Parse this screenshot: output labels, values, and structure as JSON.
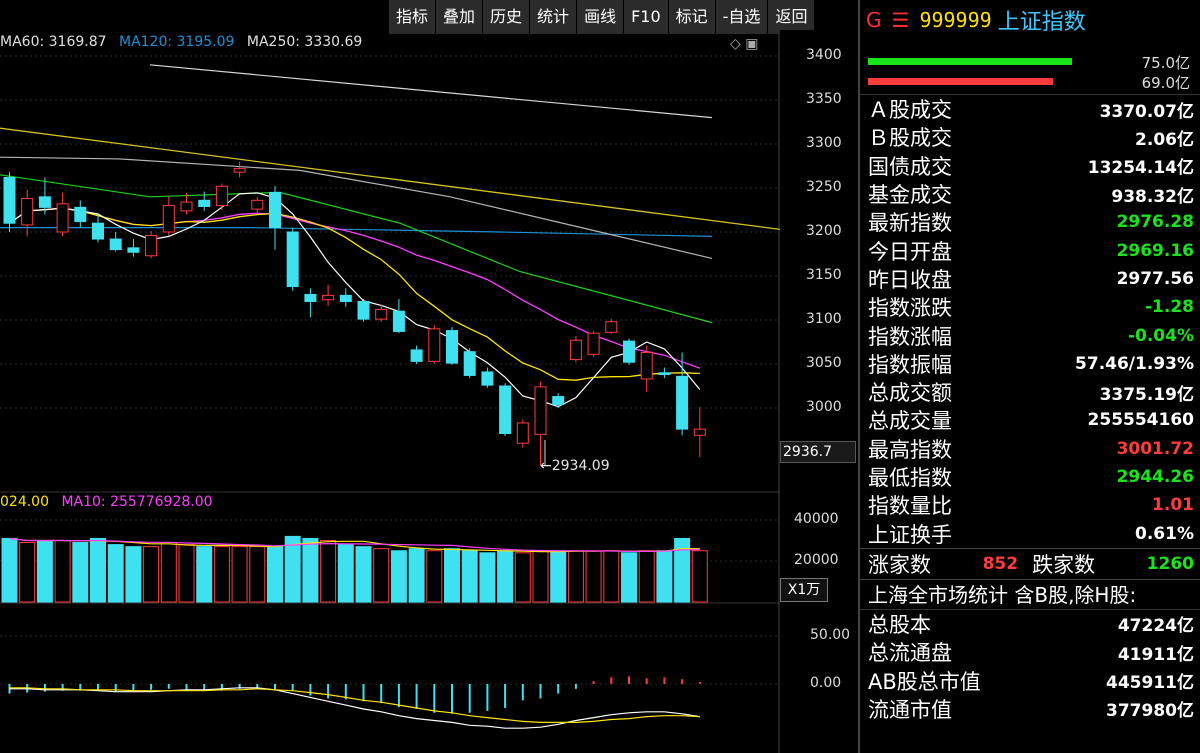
{
  "toolbar": {
    "buttons": [
      "指标",
      "叠加",
      "历史",
      "统计",
      "画线",
      "F10",
      "标记",
      "-自选",
      "返回"
    ]
  },
  "ma_legend": {
    "ma60": "MA60: 3169.87",
    "ma120": "MA120: 3195.09",
    "ma250": "MA250: 3330.69"
  },
  "vol_legend": {
    "ma5": "024.00",
    "ma10": "MA10: 255776928.00"
  },
  "price_axis": [
    "3400",
    "3350",
    "3300",
    "3250",
    "3200",
    "3150",
    "3100",
    "3050",
    "3000"
  ],
  "last_price": "2936.7",
  "low_marker": "←2934.09",
  "volume_axis": [
    "40000",
    "20000"
  ],
  "volume_unit": "X1万",
  "macd_axis": [
    "50.00",
    "0.00"
  ],
  "colors": {
    "up": "#ff3b3b",
    "down": "#3fe0f0",
    "ma5": "#ffffff",
    "ma10": "#ffe400",
    "ma20": "#ff3cff",
    "ma30": "#19d419",
    "ma60": "#b4b4b4",
    "ma120": "#1e8fd6",
    "ma250": "#d6d6d6",
    "yellow_line": "#d4c21c"
  },
  "chart_data": {
    "type": "candlestick",
    "price_ylim": [
      2940,
      3400
    ],
    "candles": [
      {
        "o": 3262,
        "c": 3210,
        "h": 3268,
        "l": 3200
      },
      {
        "o": 3208,
        "c": 3238,
        "h": 3248,
        "l": 3195
      },
      {
        "o": 3240,
        "c": 3228,
        "h": 3262,
        "l": 3220
      },
      {
        "o": 3200,
        "c": 3232,
        "h": 3245,
        "l": 3195
      },
      {
        "o": 3228,
        "c": 3212,
        "h": 3236,
        "l": 3205
      },
      {
        "o": 3210,
        "c": 3192,
        "h": 3220,
        "l": 3188
      },
      {
        "o": 3192,
        "c": 3180,
        "h": 3200,
        "l": 3178
      },
      {
        "o": 3182,
        "c": 3177,
        "h": 3192,
        "l": 3172
      },
      {
        "o": 3173,
        "c": 3196,
        "h": 3201,
        "l": 3170
      },
      {
        "o": 3200,
        "c": 3230,
        "h": 3240,
        "l": 3196
      },
      {
        "o": 3224,
        "c": 3234,
        "h": 3244,
        "l": 3220
      },
      {
        "o": 3236,
        "c": 3229,
        "h": 3246,
        "l": 3224
      },
      {
        "o": 3230,
        "c": 3252,
        "h": 3255,
        "l": 3225
      },
      {
        "o": 3268,
        "c": 3272,
        "h": 3280,
        "l": 3262
      },
      {
        "o": 3226,
        "c": 3236,
        "h": 3240,
        "l": 3222
      },
      {
        "o": 3245,
        "c": 3205,
        "h": 3252,
        "l": 3180
      },
      {
        "o": 3200,
        "c": 3138,
        "h": 3205,
        "l": 3133
      },
      {
        "o": 3129,
        "c": 3121,
        "h": 3136,
        "l": 3103
      },
      {
        "o": 3123,
        "c": 3128,
        "h": 3140,
        "l": 3116
      },
      {
        "o": 3128,
        "c": 3121,
        "h": 3136,
        "l": 3115
      },
      {
        "o": 3121,
        "c": 3101,
        "h": 3124,
        "l": 3098
      },
      {
        "o": 3101,
        "c": 3112,
        "h": 3118,
        "l": 3098
      },
      {
        "o": 3110,
        "c": 3087,
        "h": 3124,
        "l": 3085
      },
      {
        "o": 3066,
        "c": 3053,
        "h": 3071,
        "l": 3050
      },
      {
        "o": 3053,
        "c": 3090,
        "h": 3094,
        "l": 3050
      },
      {
        "o": 3088,
        "c": 3051,
        "h": 3092,
        "l": 3049
      },
      {
        "o": 3064,
        "c": 3037,
        "h": 3068,
        "l": 3034
      },
      {
        "o": 3041,
        "c": 3026,
        "h": 3046,
        "l": 3023
      },
      {
        "o": 3025,
        "c": 2971,
        "h": 3028,
        "l": 2968
      },
      {
        "o": 2960,
        "c": 2983,
        "h": 2987,
        "l": 2955
      },
      {
        "o": 2970,
        "c": 3024,
        "h": 3030,
        "l": 2934
      },
      {
        "o": 3013,
        "c": 3004,
        "h": 3017,
        "l": 3000
      },
      {
        "o": 3055,
        "c": 3077,
        "h": 3082,
        "l": 3052
      },
      {
        "o": 3061,
        "c": 3085,
        "h": 3088,
        "l": 3058
      },
      {
        "o": 3086,
        "c": 3098,
        "h": 3101,
        "l": 3084
      },
      {
        "o": 3076,
        "c": 3052,
        "h": 3079,
        "l": 3049
      },
      {
        "o": 3033,
        "c": 3063,
        "h": 3071,
        "l": 3018
      },
      {
        "o": 3040,
        "c": 3038,
        "h": 3046,
        "l": 3034
      },
      {
        "o": 3036,
        "c": 2976,
        "h": 3063,
        "l": 2969
      },
      {
        "o": 2969,
        "c": 2976,
        "h": 3001,
        "l": 2944
      }
    ],
    "volume_ylim": [
      0,
      50000
    ],
    "volumes": [
      31000,
      29000,
      30000,
      30000,
      29000,
      31000,
      28000,
      27000,
      27000,
      29000,
      28000,
      27000,
      27000,
      27000,
      27000,
      27000,
      32000,
      31000,
      30000,
      28000,
      27000,
      26000,
      25000,
      26000,
      25000,
      26000,
      25000,
      24000,
      25000,
      24000,
      25000,
      25000,
      25000,
      25000,
      25000,
      24000,
      25000,
      25000,
      31000,
      25000
    ],
    "macd_ylim": [
      -60,
      70
    ],
    "macd_hist": [
      -10,
      -9,
      -8,
      -7,
      -7,
      -7,
      -8,
      -7,
      -6,
      -5,
      -6,
      -6,
      -7,
      -5,
      -5,
      -6,
      -7,
      -12,
      -15,
      -16,
      -18,
      -20,
      -24,
      -26,
      -30,
      -31,
      -30,
      -28,
      -25,
      -17,
      -15,
      -10,
      -5,
      3,
      7,
      8,
      6,
      7,
      5,
      2
    ],
    "dif": [
      -5,
      -5,
      -6,
      -6,
      -6,
      -7,
      -8,
      -8,
      -8,
      -7,
      -6,
      -6,
      -5,
      -4,
      -4,
      -6,
      -10,
      -14,
      -18,
      -22,
      -26,
      -29,
      -33,
      -36,
      -38,
      -40,
      -43,
      -44,
      -46,
      -46,
      -45,
      -42,
      -38,
      -35,
      -32,
      -30,
      -29,
      -29,
      -31,
      -34
    ],
    "dea": [
      -4,
      -4,
      -5,
      -5,
      -6,
      -6,
      -6,
      -7,
      -7,
      -7,
      -7,
      -7,
      -6,
      -6,
      -5,
      -6,
      -7,
      -9,
      -11,
      -14,
      -17,
      -19,
      -22,
      -25,
      -28,
      -30,
      -33,
      -35,
      -37,
      -39,
      -40,
      -40,
      -40,
      -39,
      -37,
      -36,
      -34,
      -33,
      -33,
      -34
    ]
  },
  "panel": {
    "header": {
      "g": "G",
      "eq": "☰",
      "code": "999999",
      "name": "上证指数"
    },
    "bars": [
      {
        "label": "75.0亿",
        "color": "#19e319",
        "segments": [
          [
            8,
            52
          ],
          [
            57,
            155
          ]
        ],
        "top": 58
      },
      {
        "label": "69.0亿",
        "color": "#ff3b3b",
        "segments": [
          [
            8,
            57
          ],
          [
            63,
            130
          ]
        ],
        "top": 78
      }
    ],
    "stats": [
      {
        "label": "Ａ股成交",
        "value": "3370.07亿",
        "color": "#ffffff"
      },
      {
        "label": "Ｂ股成交",
        "value": "2.06亿",
        "color": "#ffffff"
      },
      {
        "label": "国债成交",
        "value": "13254.14亿",
        "color": "#ffffff"
      },
      {
        "label": "基金成交",
        "value": "938.32亿",
        "color": "#ffffff"
      },
      {
        "label": "最新指数",
        "value": "2976.28",
        "color": "#19e319"
      },
      {
        "label": "今日开盘",
        "value": "2969.16",
        "color": "#19e319"
      },
      {
        "label": "昨日收盘",
        "value": "2977.56",
        "color": "#ffffff"
      },
      {
        "label": "指数涨跌",
        "value": "-1.28",
        "color": "#19e319"
      },
      {
        "label": "指数涨幅",
        "value": "-0.04%",
        "color": "#19e319"
      },
      {
        "label": "指数振幅",
        "value": "57.46/1.93%",
        "color": "#ffffff"
      },
      {
        "label": "总成交额",
        "value": "3375.19亿",
        "color": "#ffffff"
      },
      {
        "label": "总成交量",
        "value": "255554160",
        "color": "#ffffff"
      },
      {
        "label": "最高指数",
        "value": "3001.72",
        "color": "#ff3b3b"
      },
      {
        "label": "最低指数",
        "value": "2944.26",
        "color": "#19e319"
      },
      {
        "label": "指数量比",
        "value": "1.01",
        "color": "#ff3b3b"
      },
      {
        "label": "上证换手",
        "value": "0.61%",
        "color": "#ffffff"
      }
    ],
    "updown": {
      "up_label": "涨家数",
      "up_value": "852",
      "down_label": "跌家数",
      "down_value": "1260"
    },
    "market_title": "上海全市场统计 含B股,除H股:",
    "market": [
      {
        "label": "总股本",
        "value": "47224亿"
      },
      {
        "label": "总流通盘",
        "value": "41911亿"
      },
      {
        "label": "AB股总市值",
        "value": "445911亿"
      },
      {
        "label": "流通市值",
        "value": "377980亿"
      }
    ]
  }
}
